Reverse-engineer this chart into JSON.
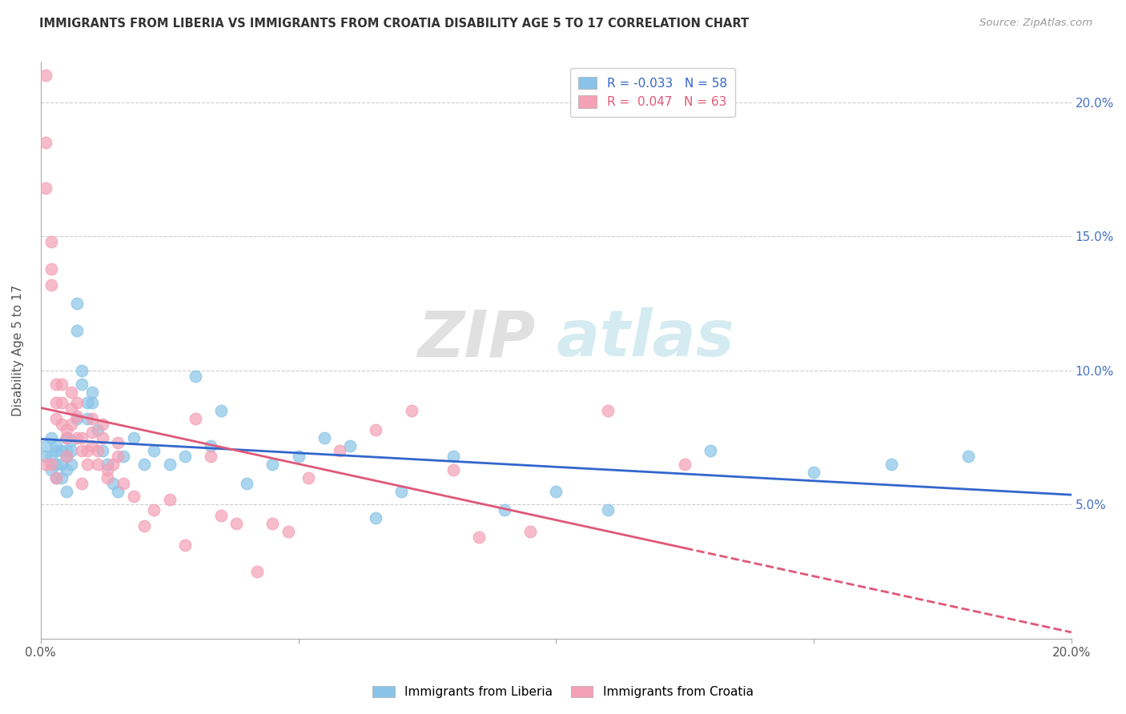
{
  "title": "IMMIGRANTS FROM LIBERIA VS IMMIGRANTS FROM CROATIA DISABILITY AGE 5 TO 17 CORRELATION CHART",
  "source": "Source: ZipAtlas.com",
  "ylabel": "Disability Age 5 to 17",
  "xlabel_liberia": "Immigrants from Liberia",
  "xlabel_croatia": "Immigrants from Croatia",
  "watermark_zip": "ZIP",
  "watermark_atlas": "atlas",
  "liberia_R": -0.033,
  "liberia_N": 58,
  "croatia_R": 0.047,
  "croatia_N": 63,
  "xlim": [
    0.0,
    0.2
  ],
  "ylim": [
    0.0,
    0.215
  ],
  "yticks": [
    0.05,
    0.1,
    0.15,
    0.2
  ],
  "xticks": [
    0.0,
    0.05,
    0.1,
    0.15,
    0.2
  ],
  "ytick_labels": [
    "5.0%",
    "10.0%",
    "15.0%",
    "20.0%"
  ],
  "xtick_labels_left": "0.0%",
  "xtick_labels_right": "20.0%",
  "color_liberia": "#89C4E8",
  "color_croatia": "#F4A0B5",
  "trendline_liberia": "#3366CC",
  "trendline_croatia": "#E05878",
  "liberia_x": [
    0.001,
    0.001,
    0.002,
    0.002,
    0.002,
    0.003,
    0.003,
    0.003,
    0.003,
    0.004,
    0.004,
    0.004,
    0.005,
    0.005,
    0.005,
    0.005,
    0.005,
    0.006,
    0.006,
    0.006,
    0.007,
    0.007,
    0.007,
    0.008,
    0.008,
    0.009,
    0.009,
    0.01,
    0.01,
    0.011,
    0.012,
    0.013,
    0.014,
    0.015,
    0.016,
    0.018,
    0.02,
    0.022,
    0.025,
    0.028,
    0.03,
    0.033,
    0.035,
    0.04,
    0.045,
    0.05,
    0.055,
    0.06,
    0.065,
    0.07,
    0.08,
    0.09,
    0.1,
    0.11,
    0.13,
    0.15,
    0.165,
    0.18
  ],
  "liberia_y": [
    0.072,
    0.068,
    0.075,
    0.068,
    0.063,
    0.07,
    0.072,
    0.065,
    0.06,
    0.07,
    0.065,
    0.06,
    0.075,
    0.07,
    0.068,
    0.063,
    0.055,
    0.074,
    0.07,
    0.065,
    0.115,
    0.125,
    0.082,
    0.095,
    0.1,
    0.088,
    0.082,
    0.088,
    0.092,
    0.078,
    0.07,
    0.065,
    0.058,
    0.055,
    0.068,
    0.075,
    0.065,
    0.07,
    0.065,
    0.068,
    0.098,
    0.072,
    0.085,
    0.058,
    0.065,
    0.068,
    0.075,
    0.072,
    0.045,
    0.055,
    0.068,
    0.048,
    0.055,
    0.048,
    0.07,
    0.062,
    0.065,
    0.068
  ],
  "croatia_x": [
    0.001,
    0.001,
    0.001,
    0.001,
    0.002,
    0.002,
    0.002,
    0.002,
    0.003,
    0.003,
    0.003,
    0.003,
    0.004,
    0.004,
    0.004,
    0.005,
    0.005,
    0.005,
    0.006,
    0.006,
    0.006,
    0.007,
    0.007,
    0.007,
    0.008,
    0.008,
    0.008,
    0.009,
    0.009,
    0.01,
    0.01,
    0.01,
    0.011,
    0.011,
    0.012,
    0.012,
    0.013,
    0.013,
    0.014,
    0.015,
    0.015,
    0.016,
    0.018,
    0.02,
    0.022,
    0.025,
    0.028,
    0.03,
    0.033,
    0.035,
    0.038,
    0.042,
    0.045,
    0.048,
    0.052,
    0.058,
    0.065,
    0.072,
    0.08,
    0.085,
    0.095,
    0.11,
    0.125
  ],
  "croatia_y": [
    0.21,
    0.185,
    0.168,
    0.065,
    0.148,
    0.138,
    0.132,
    0.065,
    0.095,
    0.088,
    0.082,
    0.06,
    0.095,
    0.088,
    0.08,
    0.078,
    0.075,
    0.068,
    0.092,
    0.086,
    0.08,
    0.088,
    0.083,
    0.075,
    0.075,
    0.07,
    0.058,
    0.07,
    0.065,
    0.082,
    0.077,
    0.072,
    0.07,
    0.065,
    0.08,
    0.075,
    0.063,
    0.06,
    0.065,
    0.073,
    0.068,
    0.058,
    0.053,
    0.042,
    0.048,
    0.052,
    0.035,
    0.082,
    0.068,
    0.046,
    0.043,
    0.025,
    0.043,
    0.04,
    0.06,
    0.07,
    0.078,
    0.085,
    0.063,
    0.038,
    0.04,
    0.085,
    0.065
  ]
}
